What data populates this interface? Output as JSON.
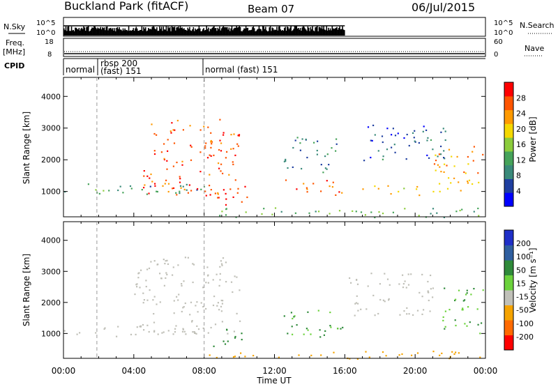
{
  "header": {
    "station": "Buckland Park (fitACF)",
    "beam": "Beam 07",
    "date": "06/Jul/2015"
  },
  "panels": {
    "nsky": {
      "label": "N.Sky",
      "ticks": [
        "10^5",
        "10^0"
      ],
      "right_ticks": [
        "10^5",
        "10^0"
      ],
      "right_label": "N.Search"
    },
    "freq": {
      "label_line1": "Freq.",
      "label_line2": "[MHz]",
      "ticks": [
        "18",
        "8"
      ],
      "right_ticks": [
        "60",
        "0"
      ],
      "right_label": "Nave"
    },
    "cpid": {
      "label": "CPID",
      "segments": [
        {
          "text": "normal",
          "start_hour": 0.0
        },
        {
          "text": "rbsp 200",
          "start_hour": 1.9
        },
        {
          "text": "(fast) 151",
          "start_hour": 1.9
        },
        {
          "text": "normal (fast) 151",
          "start_hour": 8.0
        }
      ]
    }
  },
  "colors": {
    "power_scale": [
      "#0000ff",
      "#1f3fa0",
      "#3a8a7a",
      "#46a35a",
      "#8ccc3c",
      "#f5d800",
      "#ff9a00",
      "#ff5500",
      "#ff0000"
    ],
    "velocity_scale": [
      "#1f2fc8",
      "#2f5fa0",
      "#2f8a3a",
      "#6cd23c",
      "#c0c0b8",
      "#f5a300",
      "#ff6a00",
      "#ff0000"
    ]
  },
  "chart_data": [
    {
      "type": "heatmap",
      "name_panel": "power",
      "ylabel": "Slant Range [km]",
      "ylim": [
        200,
        4600
      ],
      "yticks": [
        "1000",
        "2000",
        "3000",
        "4000"
      ],
      "xlim_hours": [
        0,
        24
      ],
      "xticks": [
        "00:00",
        "04:00",
        "08:00",
        "12:00",
        "16:00",
        "20:00",
        "00:00"
      ],
      "colorbar": {
        "label": "Power [dB]",
        "ticks": [
          "28",
          "24",
          "20",
          "16",
          "12",
          "8",
          "4"
        ]
      },
      "echo_regions": [
        {
          "t0": 0.0,
          "t1": 8.0,
          "r0": 900,
          "r1": 1300,
          "value": 12
        },
        {
          "t0": 4.5,
          "t1": 10.0,
          "r0": 900,
          "r1": 3300,
          "value": 26
        },
        {
          "t0": 8.0,
          "t1": 10.5,
          "r0": 500,
          "r1": 1200,
          "value": 28
        },
        {
          "t0": 12.5,
          "t1": 16.0,
          "r0": 900,
          "r1": 1400,
          "value": 26
        },
        {
          "t0": 12.5,
          "t1": 15.5,
          "r0": 1600,
          "r1": 2800,
          "value": 10
        },
        {
          "t0": 16.5,
          "t1": 20.5,
          "r0": 900,
          "r1": 1200,
          "value": 20
        },
        {
          "t0": 17.0,
          "t1": 22.0,
          "r0": 2000,
          "r1": 3200,
          "value": 8
        },
        {
          "t0": 21.0,
          "t1": 24.0,
          "r0": 1000,
          "r1": 2500,
          "value": 22
        },
        {
          "t0": 8.0,
          "t1": 24.0,
          "r0": 200,
          "r1": 500,
          "value": 14
        }
      ]
    },
    {
      "type": "heatmap",
      "name_panel": "velocity",
      "ylabel": "Slant Range [km]",
      "ylim": [
        200,
        4600
      ],
      "yticks": [
        "1000",
        "2000",
        "3000",
        "4000"
      ],
      "xlim_hours": [
        0,
        24
      ],
      "xticks": [
        "00:00",
        "04:00",
        "08:00",
        "12:00",
        "16:00",
        "20:00",
        "00:00"
      ],
      "xlabel": "Time UT",
      "colorbar": {
        "label": "Velocity [m s⁻¹]",
        "ticks": [
          "200",
          "100",
          "50",
          "15",
          "-15",
          "-50",
          "-100",
          "-200"
        ]
      },
      "echo_regions": [
        {
          "t0": 0.0,
          "t1": 8.0,
          "r0": 900,
          "r1": 1300,
          "value": 0
        },
        {
          "t0": 4.0,
          "t1": 10.0,
          "r0": 1000,
          "r1": 3500,
          "value": 0
        },
        {
          "t0": 8.5,
          "t1": 10.5,
          "r0": 600,
          "r1": 1200,
          "value": 40
        },
        {
          "t0": 12.5,
          "t1": 16.0,
          "r0": 900,
          "r1": 1800,
          "value": 35
        },
        {
          "t0": 16.0,
          "t1": 21.0,
          "r0": 1600,
          "r1": 3000,
          "value": 0
        },
        {
          "t0": 21.5,
          "t1": 24.0,
          "r0": 1000,
          "r1": 2500,
          "value": 30
        },
        {
          "t0": 8.0,
          "t1": 24.0,
          "r0": 200,
          "r1": 450,
          "value": -40
        }
      ]
    }
  ]
}
